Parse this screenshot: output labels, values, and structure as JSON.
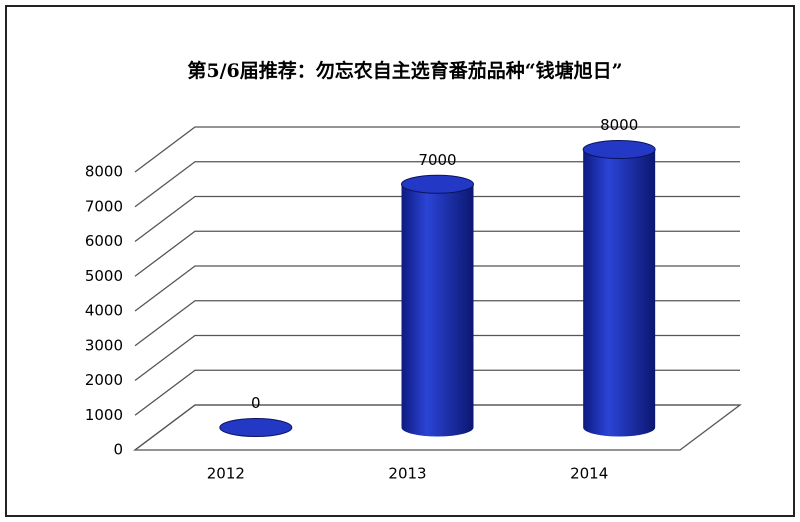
{
  "chart_data": {
    "type": "bar3d",
    "title": "第5/6届推荐：勿忘农自主选育番茄品种“钱塘旭日”",
    "categories": [
      "2012",
      "2013",
      "2014"
    ],
    "values": [
      0,
      7000,
      8000
    ],
    "color": "#1c2fb8",
    "ylim": [
      0,
      8000
    ],
    "yticks": [
      0,
      1000,
      2000,
      3000,
      4000,
      5000,
      6000,
      7000,
      8000
    ],
    "grid": true
  }
}
